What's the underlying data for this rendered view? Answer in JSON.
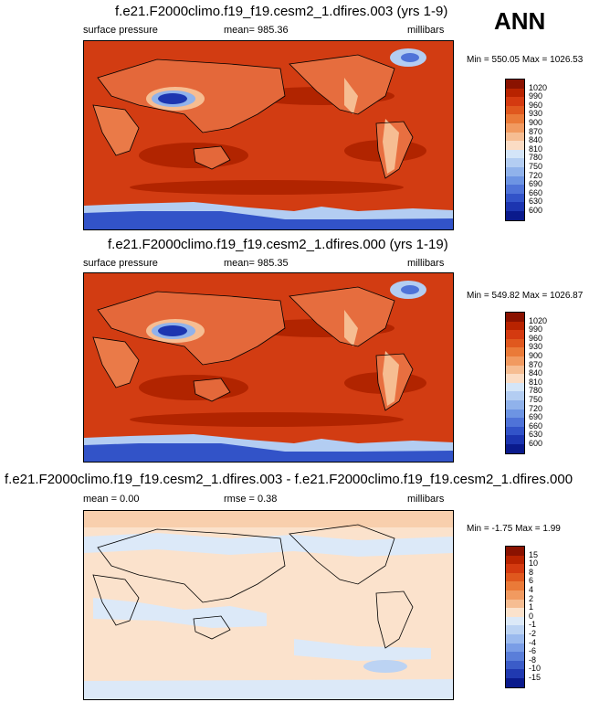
{
  "season": "ANN",
  "panels": [
    {
      "title": "f.e21.F2000climo.f19_f19.cesm2_1.dfires.003 (yrs 1-9)",
      "left_label": "surface pressure",
      "center_label": "mean= 985.36",
      "right_label": "millibars",
      "minmax": "Min = 550.05 Max = 1026.53",
      "kind": "abs"
    },
    {
      "title": "f.e21.F2000climo.f19_f19.cesm2_1.dfires.000 (yrs 1-19)",
      "left_label": "surface pressure",
      "center_label": "mean= 985.35",
      "right_label": "millibars",
      "minmax": "Min = 549.82 Max = 1026.87",
      "kind": "abs"
    },
    {
      "title": "f.e21.F2000climo.f19_f19.cesm2_1.dfires.003 - f.e21.F2000climo.f19_f19.cesm2_1.dfires.000",
      "left_label": "mean =   0.00",
      "center_label": "rmse =   0.38",
      "right_label": "millibars",
      "minmax": "Min =  -1.75 Max =   1.99",
      "kind": "diff"
    }
  ],
  "colorbars": {
    "abs": {
      "labels": [
        "1020",
        "990",
        "960",
        "930",
        "900",
        "870",
        "840",
        "810",
        "780",
        "750",
        "720",
        "690",
        "660",
        "630",
        "600"
      ],
      "colors": [
        "#8a1200",
        "#b82300",
        "#d43a10",
        "#e0581e",
        "#ea7a38",
        "#f19a60",
        "#f6bd92",
        "#fbdcc4",
        "#d4e5f8",
        "#b3cdf2",
        "#90b2eb",
        "#6d94e3",
        "#4f73d8",
        "#3253c8",
        "#1c35b0",
        "#0a1a8c"
      ]
    },
    "diff": {
      "labels": [
        "15",
        "10",
        "8",
        "6",
        "4",
        "2",
        "1",
        "0",
        "-1",
        "-2",
        "-4",
        "-6",
        "-8",
        "-10",
        "-15"
      ],
      "colors": [
        "#8a1200",
        "#b82300",
        "#d43a10",
        "#e0581e",
        "#ea7a38",
        "#f19a60",
        "#f6bd92",
        "#fbe2cc",
        "#dce9f8",
        "#bcd3f3",
        "#9bbaee",
        "#7a9de6",
        "#5a7ed9",
        "#3b5cc8",
        "#2039b0",
        "#0a1a8c"
      ]
    }
  }
}
